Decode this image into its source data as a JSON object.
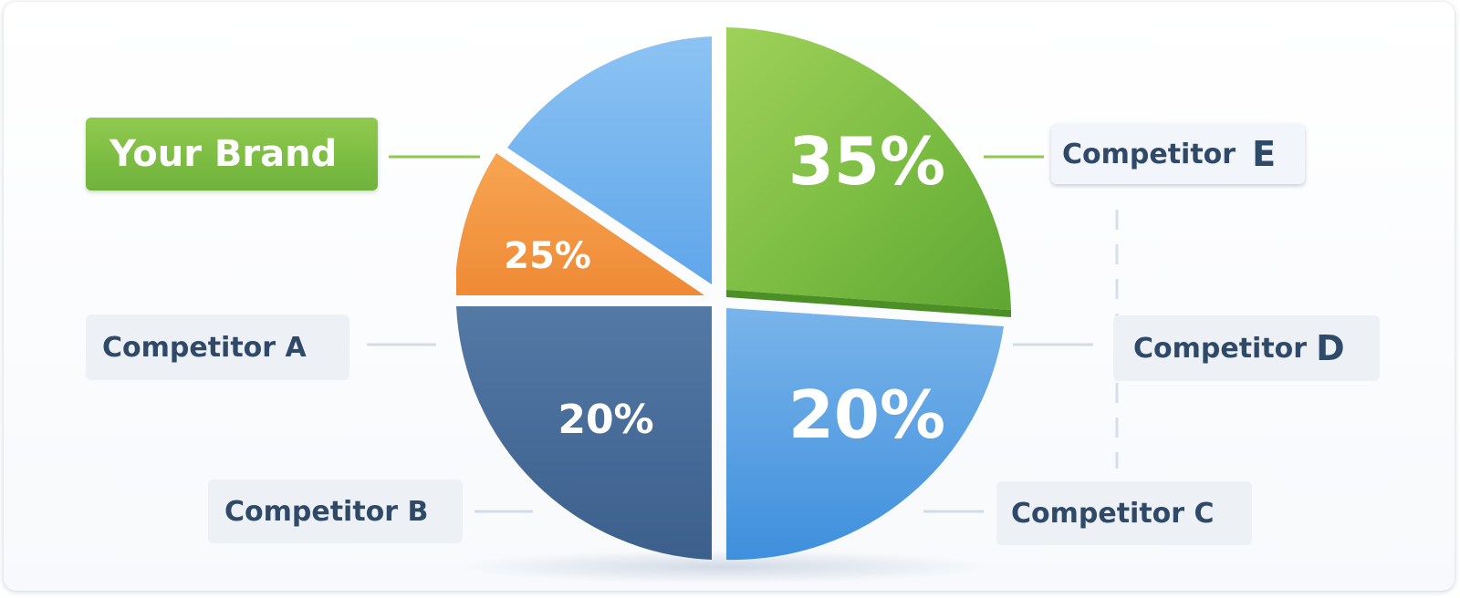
{
  "chart_data": {
    "type": "pie",
    "title": "",
    "slices": [
      {
        "label": "Your Brand",
        "value": null,
        "color": "#7bb7ee"
      },
      {
        "label": "Competitor A",
        "value": 25,
        "color": "#f39a48"
      },
      {
        "label": "Competitor B",
        "value": 20,
        "color": "#4a6e99"
      },
      {
        "label": "Competitor C",
        "value": 20,
        "color": "#5da4e6"
      },
      {
        "label": "Competitor E",
        "value": 35,
        "color": "#76bb3f"
      }
    ],
    "value_labels": [
      "35%",
      "25%",
      "20%",
      "20%"
    ],
    "legend": {
      "brand": "Your Brand",
      "a": "Competitor A",
      "b": "Competitor B",
      "c": "Competitor C",
      "d_text": "Competitor",
      "d_letter": "D",
      "e_text": "Competitor",
      "e_letter": "E"
    },
    "legend_placement": "around"
  }
}
